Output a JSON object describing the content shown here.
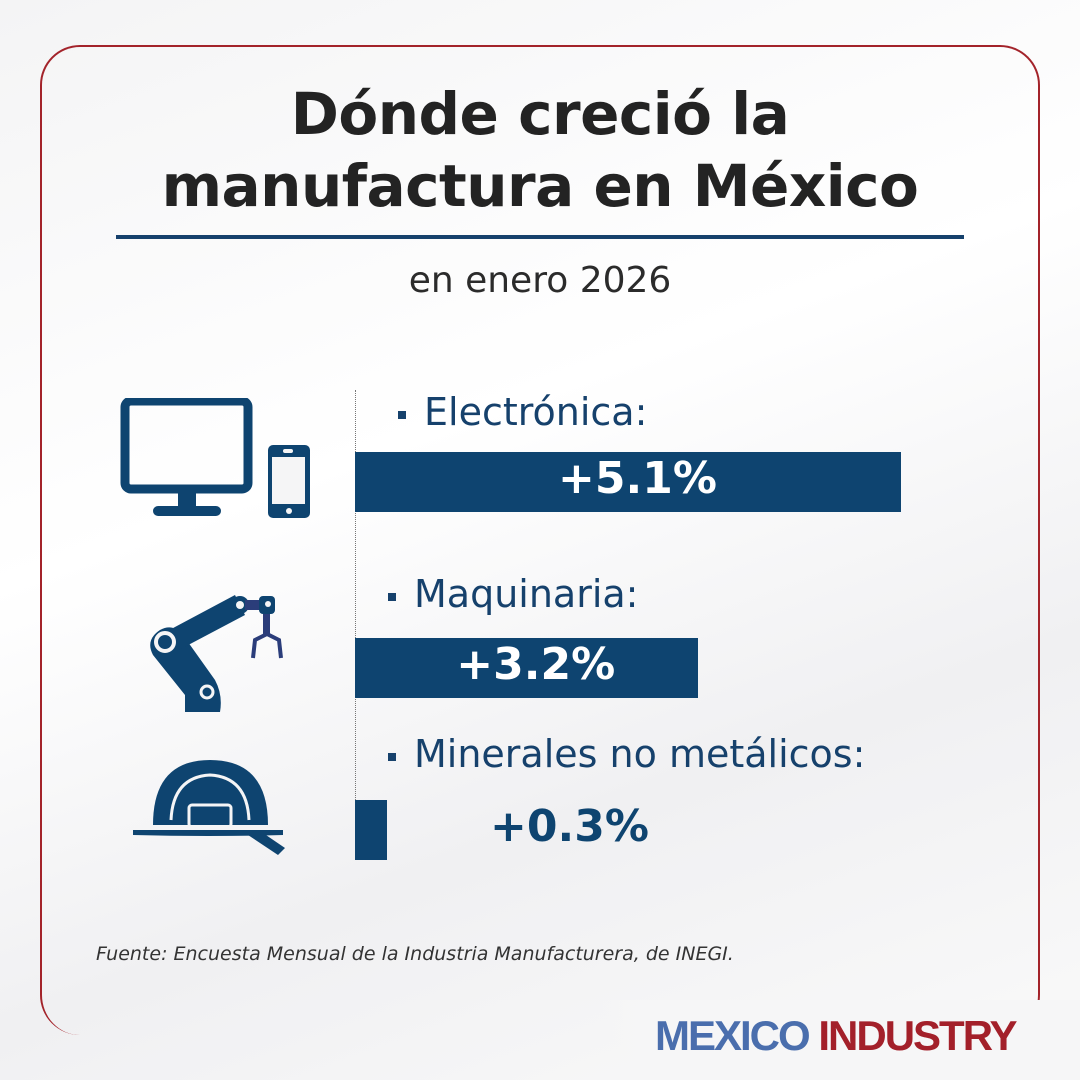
{
  "title_line1": "Dónde creció la",
  "title_line2": "manufactura en México",
  "subtitle": "en enero 2026",
  "colors": {
    "bar": "#0e4470",
    "frame": "#a3232a",
    "logo_mexico": "#4a6ead",
    "logo_industry": "#a3202a"
  },
  "chart_data": {
    "type": "bar",
    "orientation": "horizontal",
    "categories": [
      "Electrónica:",
      "Maquinaria:",
      "Minerales no metálicos:"
    ],
    "values": [
      5.1,
      3.2,
      0.3
    ],
    "value_labels": [
      "+5.1%",
      "+3.2%",
      "+0.3%"
    ],
    "icons": [
      "monitor-and-phone-icon",
      "robot-arm-icon",
      "hard-hat-icon"
    ],
    "unit": "%"
  },
  "source": "Fuente: Encuesta Mensual de la Industria Manufacturera, de INEGI.",
  "logo": {
    "part1": "MEXICO",
    "part2": "INDUSTRY"
  }
}
